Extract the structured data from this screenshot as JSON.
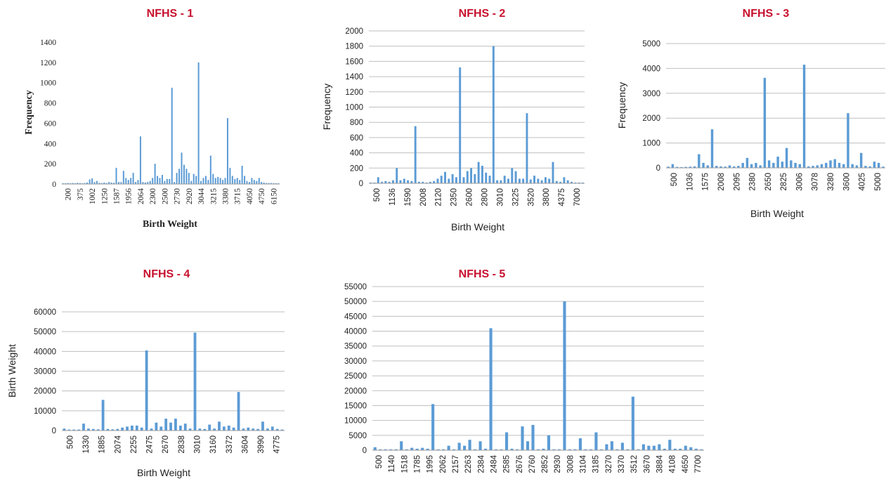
{
  "chart_data": [
    {
      "id": "nfhs1",
      "type": "bar",
      "title": "NFHS - 1",
      "xlabel": "Birth Weight",
      "ylabel": "Frequency",
      "ylim": [
        0,
        1400
      ],
      "yticks": [
        0,
        200,
        400,
        600,
        800,
        1000,
        1200,
        1400
      ],
      "xticks": [
        "200",
        "375",
        "1002",
        "1250",
        "1587",
        "1956",
        "2064",
        "2300",
        "2500",
        "2730",
        "2920",
        "3044",
        "3215",
        "3380",
        "3715",
        "4050",
        "4750",
        "6150"
      ],
      "grid": false,
      "font": "serif",
      "values": [
        8,
        8,
        10,
        8,
        10,
        8,
        12,
        10,
        8,
        10,
        15,
        45,
        55,
        20,
        30,
        12,
        10,
        15,
        10,
        20,
        15,
        12,
        160,
        20,
        20,
        130,
        60,
        40,
        60,
        110,
        20,
        40,
        470,
        20,
        15,
        20,
        30,
        60,
        200,
        80,
        60,
        90,
        30,
        50,
        50,
        950,
        20,
        110,
        150,
        310,
        190,
        150,
        110,
        30,
        100,
        80,
        1200,
        30,
        60,
        80,
        40,
        280,
        100,
        60,
        70,
        60,
        40,
        60,
        650,
        160,
        80,
        50,
        60,
        40,
        180,
        80,
        30,
        20,
        60,
        40,
        30,
        60,
        20,
        15,
        10,
        10,
        10,
        8,
        8,
        8
      ]
    },
    {
      "id": "nfhs2",
      "type": "bar",
      "title": "NFHS - 2",
      "xlabel": "Birth Weight",
      "ylabel": "Frequency",
      "ylim": [
        0,
        2000
      ],
      "yticks": [
        0,
        200,
        400,
        600,
        800,
        1000,
        1200,
        1400,
        1600,
        1800,
        2000
      ],
      "xticks": [
        "500",
        "1136",
        "1590",
        "2008",
        "2120",
        "2350",
        "2600",
        "2800",
        "3010",
        "3225",
        "3520",
        "3800",
        "4375",
        "7000"
      ],
      "grid": true,
      "font": "sans",
      "values": [
        10,
        10,
        80,
        20,
        30,
        20,
        40,
        200,
        40,
        60,
        40,
        30,
        750,
        20,
        20,
        10,
        20,
        30,
        60,
        100,
        150,
        60,
        120,
        80,
        1520,
        80,
        160,
        200,
        120,
        280,
        230,
        140,
        100,
        1800,
        40,
        40,
        100,
        60,
        200,
        160,
        60,
        60,
        920,
        50,
        100,
        60,
        40,
        80,
        60,
        280,
        30,
        20,
        80,
        40,
        20,
        10,
        10,
        10
      ]
    },
    {
      "id": "nfhs3",
      "type": "bar",
      "title": "NFHS - 3",
      "xlabel": "Birth Weight",
      "ylabel": "Frequency",
      "ylim": [
        0,
        5000
      ],
      "yticks": [
        0,
        1000,
        2000,
        3000,
        4000,
        5000
      ],
      "xticks": [
        "500",
        "1036",
        "1575",
        "2008",
        "2095",
        "2380",
        "2650",
        "2825",
        "3006",
        "3078",
        "3280",
        "3600",
        "4025",
        "5000"
      ],
      "grid": true,
      "font": "sans",
      "values": [
        50,
        150,
        40,
        30,
        40,
        50,
        60,
        550,
        200,
        100,
        1550,
        80,
        60,
        50,
        100,
        60,
        80,
        200,
        400,
        150,
        200,
        100,
        3620,
        300,
        200,
        450,
        250,
        800,
        300,
        200,
        150,
        4150,
        60,
        80,
        100,
        150,
        200,
        300,
        350,
        200,
        150,
        2200,
        150,
        100,
        600,
        80,
        60,
        250,
        200,
        50
      ]
    },
    {
      "id": "nfhs4",
      "type": "bar",
      "title": "NFHS - 4",
      "xlabel": "Birth Weight",
      "ylabel": "Birth Weight",
      "ylim": [
        0,
        60000
      ],
      "yticks": [
        0,
        10000,
        20000,
        30000,
        40000,
        50000,
        60000
      ],
      "xticks": [
        "500",
        "1330",
        "1885",
        "2074",
        "2255",
        "2475",
        "2670",
        "2838",
        "3010",
        "3160",
        "3372",
        "3604",
        "3990",
        "4775"
      ],
      "grid": true,
      "font": "sans",
      "values": [
        1000,
        500,
        500,
        500,
        3500,
        1000,
        800,
        600,
        15500,
        800,
        600,
        800,
        1500,
        2000,
        2500,
        2500,
        1500,
        40500,
        1000,
        4000,
        2000,
        6000,
        4000,
        6000,
        2500,
        3500,
        1000,
        49500,
        1000,
        800,
        3000,
        1000,
        4500,
        2000,
        2500,
        1500,
        19500,
        1000,
        1500,
        1000,
        800,
        4500,
        1000,
        2000,
        800,
        500
      ]
    },
    {
      "id": "nfhs5",
      "type": "bar",
      "title": "NFHS - 5",
      "xlabel": "",
      "ylabel": "",
      "ylim": [
        0,
        55000
      ],
      "yticks": [
        0,
        5000,
        10000,
        15000,
        20000,
        25000,
        30000,
        35000,
        40000,
        45000,
        50000,
        55000
      ],
      "xticks": [
        "500",
        "1140",
        "1518",
        "1785",
        "1995",
        "2062",
        "2157",
        "2263",
        "2384",
        "2484",
        "2585",
        "2676",
        "2760",
        "2852",
        "2930",
        "3008",
        "3104",
        "3185",
        "3270",
        "3370",
        "3512",
        "3670",
        "3884",
        "4108",
        "4650",
        "7700"
      ],
      "grid": true,
      "font": "sans",
      "values": [
        1000,
        300,
        300,
        300,
        300,
        3000,
        300,
        800,
        500,
        800,
        500,
        15500,
        300,
        300,
        1500,
        300,
        2500,
        1500,
        3500,
        300,
        3000,
        500,
        41000,
        300,
        300,
        6000,
        500,
        300,
        8000,
        3000,
        8500,
        300,
        500,
        5000,
        300,
        300,
        50000,
        300,
        300,
        4000,
        300,
        300,
        6000,
        300,
        2000,
        3000,
        300,
        2500,
        300,
        18000,
        300,
        2000,
        1500,
        1500,
        2000,
        500,
        3500,
        500,
        500,
        1500,
        1000,
        500,
        300
      ]
    }
  ],
  "partial_label": "Birth Weight"
}
